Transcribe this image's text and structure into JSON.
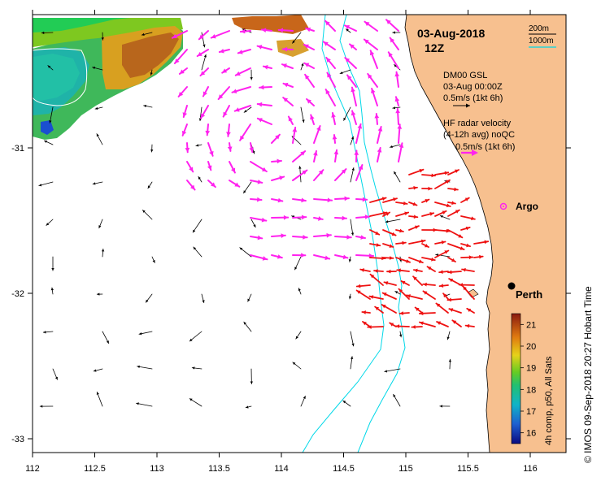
{
  "title": {
    "date": "03-Aug-2018",
    "time": "12Z"
  },
  "isobath_legend": {
    "line1": "200m",
    "line2": "1000m"
  },
  "model_legend": {
    "name": "DM00 GSL",
    "time": "03-Aug 00:00Z",
    "scale": "0.5m/s (1kt 6h)"
  },
  "radar_legend": {
    "title": "HF radar velocity",
    "subtitle": "(4-12h avg) noQC",
    "scale": "0.5m/s (1kt 6h)"
  },
  "places": {
    "argo": "Argo",
    "perth": "Perth"
  },
  "x_axis": {
    "ticks": [
      "112",
      "112.5",
      "113",
      "113.5",
      "114",
      "114.5",
      "115",
      "115.5",
      "116"
    ]
  },
  "y_axis": {
    "ticks": [
      "-31",
      "-32",
      "-33"
    ]
  },
  "colorbar": {
    "label": "4h comp, p50, All Sats",
    "ticks": [
      "21",
      "20",
      "19",
      "18",
      "17",
      "16"
    ],
    "min": 15.5,
    "max": 21.5
  },
  "credit": "© IMOS 09-Sep-2018 20:27 Hobart Time",
  "colors": {
    "land": "#f7c08f",
    "isobath_200": "#00d8e8",
    "model_arrow": "#000000",
    "radar_arrow": "#ff22ee",
    "qc_arrow": "#ee1111",
    "argo": "#ff22ee"
  },
  "chart_data": {
    "type": "map",
    "lon_range": [
      112,
      116.3
    ],
    "lat_range": [
      -33.1,
      -30.55
    ],
    "markers": [
      {
        "name": "Argo",
        "lon": 115.76,
        "lat": -31.4
      },
      {
        "name": "Perth",
        "lon": 115.86,
        "lat": -31.95
      }
    ]
  }
}
